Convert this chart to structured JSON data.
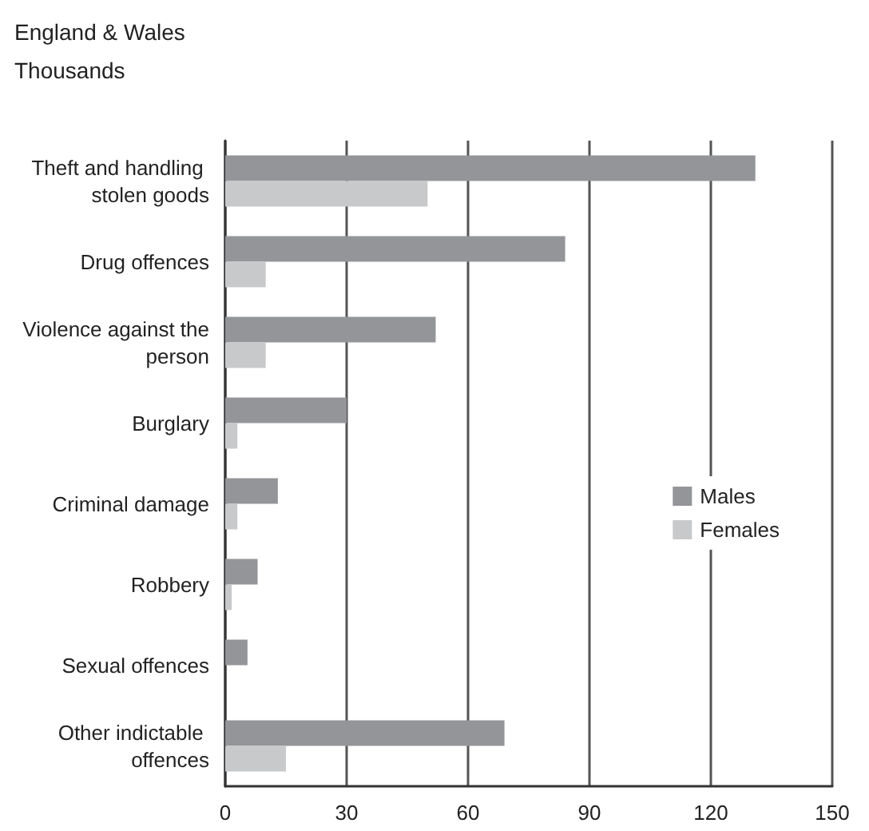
{
  "chart_data": {
    "type": "bar",
    "orientation": "horizontal",
    "title": "England & Wales",
    "subtitle": "Thousands",
    "categories": [
      "Theft and handling stolen goods",
      "Drug offences",
      "Violence against the person",
      "Burglary",
      "Criminal damage",
      "Robbery",
      "Sexual offences",
      "Other indictable offences"
    ],
    "series": [
      {
        "name": "Males",
        "color": "#939598",
        "values": [
          131,
          84,
          52,
          30,
          13,
          8,
          5.5,
          69
        ]
      },
      {
        "name": "Females",
        "color": "#c8c9cb",
        "values": [
          50,
          10,
          10,
          3,
          3,
          1.6,
          null,
          15
        ]
      }
    ],
    "xlim": [
      0,
      150
    ],
    "xticks": [
      0,
      30,
      60,
      90,
      120,
      150
    ],
    "grid": "x",
    "legend": "right"
  }
}
